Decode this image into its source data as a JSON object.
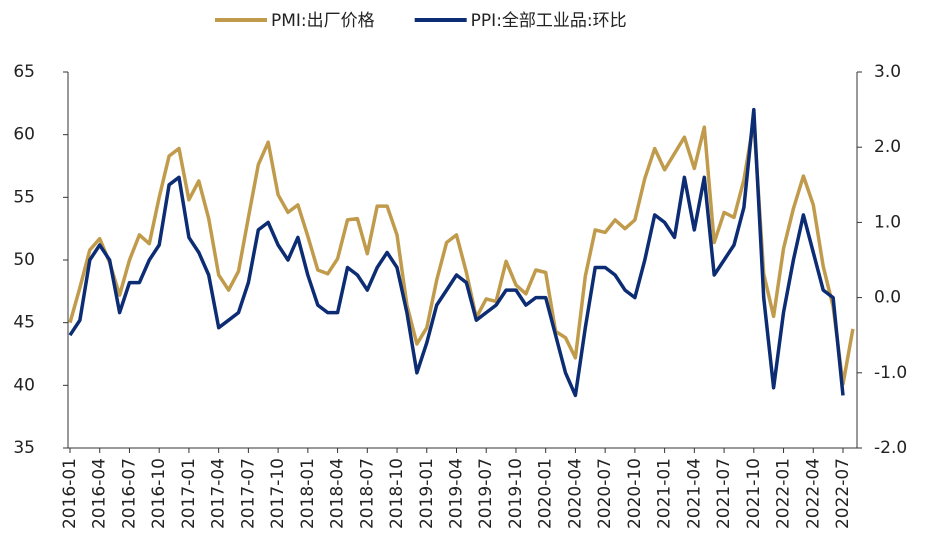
{
  "chart_data": {
    "type": "line",
    "categories": [
      "2016-01",
      null,
      null,
      "2016-04",
      null,
      null,
      "2016-07",
      null,
      null,
      "2016-10",
      null,
      null,
      "2017-01",
      null,
      null,
      "2017-04",
      null,
      null,
      "2017-07",
      null,
      null,
      "2017-10",
      null,
      null,
      "2018-01",
      null,
      null,
      "2018-04",
      null,
      null,
      "2018-07",
      null,
      null,
      "2018-10",
      null,
      null,
      "2019-01",
      null,
      null,
      "2019-04",
      null,
      null,
      "2019-07",
      null,
      null,
      "2019-10",
      null,
      null,
      "2020-01",
      null,
      null,
      "2020-04",
      null,
      null,
      "2020-07",
      null,
      null,
      "2020-10",
      null,
      null,
      "2021-01",
      null,
      null,
      "2021-04",
      null,
      null,
      "2021-07",
      null,
      null,
      "2021-10",
      null,
      null,
      "2022-01",
      null,
      null,
      "2022-04",
      null,
      null,
      "2022-07",
      null
    ],
    "series": [
      {
        "name": "PMI:出厂价格",
        "color": "#c19b4c",
        "values": [
          45.0,
          47.8,
          50.8,
          51.7,
          49.8,
          47.2,
          50.0,
          52.0,
          51.3,
          55.0,
          58.3,
          58.9,
          54.8,
          56.3,
          53.3,
          48.8,
          47.6,
          49.1,
          53.4,
          57.6,
          59.4,
          55.2,
          53.8,
          54.4,
          51.9,
          49.2,
          48.9,
          50.1,
          53.2,
          53.3,
          50.5,
          54.3,
          54.3,
          52.0,
          46.4,
          43.3,
          44.6,
          48.4,
          51.4,
          52.0,
          49.0,
          45.4,
          46.9,
          46.7,
          49.9,
          48.0,
          47.3,
          49.2,
          49.0,
          44.3,
          43.8,
          42.2,
          48.7,
          52.4,
          52.2,
          53.2,
          52.5,
          53.2,
          56.5,
          58.9,
          57.2,
          58.5,
          59.8,
          57.3,
          60.6,
          51.4,
          53.8,
          53.4,
          56.4,
          61.1,
          48.9,
          45.5,
          50.9,
          54.1,
          56.7,
          54.4,
          49.5,
          46.3,
          40.1,
          44.5
        ]
      },
      {
        "name": "PPI:全部工业品:环比",
        "color": "#0c2c74",
        "axis": "y2",
        "values": [
          -0.5,
          -0.3,
          0.5,
          0.7,
          0.5,
          -0.2,
          0.2,
          0.2,
          0.5,
          0.7,
          1.5,
          1.6,
          0.8,
          0.6,
          0.3,
          -0.4,
          -0.3,
          -0.2,
          0.2,
          0.9,
          1.0,
          0.7,
          0.5,
          0.8,
          0.3,
          -0.1,
          -0.2,
          -0.2,
          0.4,
          0.3,
          0.1,
          0.4,
          0.6,
          0.4,
          -0.2,
          -1.0,
          -0.6,
          -0.1,
          0.1,
          0.3,
          0.2,
          -0.3,
          -0.2,
          -0.1,
          0.1,
          0.1,
          -0.1,
          0.0,
          0.0,
          -0.5,
          -1.0,
          -1.3,
          -0.4,
          0.4,
          0.4,
          0.3,
          0.1,
          0.0,
          0.5,
          1.1,
          1.0,
          0.8,
          1.6,
          0.9,
          1.6,
          0.3,
          0.5,
          0.7,
          1.2,
          2.5,
          0.0,
          -1.2,
          -0.2,
          0.5,
          1.1,
          0.6,
          0.1,
          0.0,
          -1.3,
          null
        ]
      }
    ],
    "ylim": [
      35,
      65
    ],
    "yticks": [
      35,
      40,
      45,
      50,
      55,
      60,
      65
    ],
    "y2lim": [
      -2,
      3
    ],
    "y2ticks": [
      {
        "value": -2,
        "label": "-2.0"
      },
      {
        "value": -1,
        "label": "-1.0"
      },
      {
        "value": 0,
        "label": "0.0"
      },
      {
        "value": 1,
        "label": "1.0"
      },
      {
        "value": 2,
        "label": "2.0"
      },
      {
        "value": 3,
        "label": "3.0"
      }
    ],
    "legend": "top"
  }
}
